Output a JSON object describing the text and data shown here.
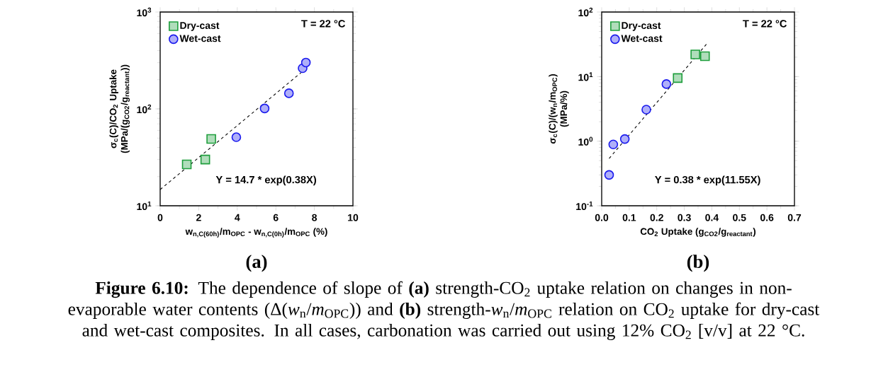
{
  "chart_data": [
    {
      "type": "scatter",
      "xlabel": "w$_{n,C(60h)}$/m$_{OPC}$ - w$_{n,C(0h)}$/m$_{OPC}$ (%)",
      "ylabel": "σ$_{c}$(C)/CO$_{2}$ Uptake (MPa/(g$_{CO2}$/g$_{reactant}$))",
      "xlim": [
        0,
        10
      ],
      "xticks": [
        0,
        2,
        4,
        6,
        8,
        10
      ],
      "ylim": [
        10,
        1000
      ],
      "log": true,
      "yticks": [
        {
          "value": 10,
          "label": "10$^{1}$"
        },
        {
          "value": 100,
          "label": "10$^{2}$"
        },
        {
          "value": 1000,
          "label": "10$^{3}$"
        }
      ],
      "legend": "top left",
      "series": [
        {
          "name": "Dry-cast",
          "marker": "square",
          "color": "#1e9e3c",
          "x": [
            1.38,
            2.34,
            2.65
          ],
          "values": [
            26.7,
            30.0,
            48.9
          ]
        },
        {
          "name": "Wet-cast",
          "marker": "circle",
          "color": "#1a1aee",
          "x": [
            3.95,
            5.42,
            6.68,
            7.39,
            7.56
          ],
          "values": [
            51,
            101,
            145,
            263,
            301
          ]
        },
        {
          "type": "line",
          "line_style": "dashed",
          "marker": "none",
          "color": "#000000",
          "x": [
            0,
            7.45
          ],
          "values": [
            14.7,
            250
          ]
        }
      ],
      "annotations": [
        "T = 22 °C",
        "Y = 14.7 * exp(0.38X)",
        "(a)",
        "**Figure 6.10:** The dependence of slope of **(a)** strength-CO$_{2}$ uptake relation on changes in non-evaporable water contents (Δ(*w*$_{n}$/*m*$_{OPC}$)) and **(b)** strength-*w*$_{n}$/*m*$_{OPC}$ relation on CO$_{2}$ uptake for dry-cast and wet-cast composites. In all cases, carbonation was carried out using 12% CO$_{2}$ [v/v] at 22 °C."
      ]
    },
    {
      "type": "scatter",
      "xlabel": "CO$_{2}$ Uptake (g$_{CO2}$/g$_{reactant}$)",
      "ylabel": "σ$_{c}$(C)/(w$_{n}$/m$_{OPC}$) (MPa/%)",
      "xlim": [
        0,
        0.7
      ],
      "xticks": [
        {
          "value": 0,
          "label": "0.0"
        },
        0.1,
        0.2,
        0.3,
        0.4,
        0.5,
        0.6,
        0.7
      ],
      "ylim": [
        0.1,
        100
      ],
      "log": true,
      "yticks": [
        {
          "value": 0.1,
          "label": "10$^{-1}$"
        },
        {
          "value": 1,
          "label": "10$^{0}$"
        },
        {
          "value": 10,
          "label": "10$^{1}$"
        },
        {
          "value": 100,
          "label": "10$^{2}$"
        }
      ],
      "legend": "top left",
      "series": [
        {
          "name": "Dry-cast",
          "marker": "square",
          "color": "#1e9e3c",
          "x": [
            0.276,
            0.34,
            0.375
          ],
          "values": [
            9.5,
            22.0,
            20.7
          ]
        },
        {
          "name": "Wet-cast",
          "marker": "circle",
          "color": "#1a1aee",
          "x": [
            0.027,
            0.042,
            0.084,
            0.162,
            0.235
          ],
          "values": [
            0.3,
            0.89,
            1.08,
            3.08,
            7.66
          ]
        },
        {
          "type": "line",
          "line_style": "dashed",
          "marker": "none",
          "color": "#000000",
          "x": [
            0.027,
            0.38
          ],
          "values": [
            0.54,
            31.6
          ]
        }
      ],
      "annotations": [
        "T = 22 °C",
        "Y = 0.38 * exp(11.55X)",
        "(b)"
      ]
    }
  ]
}
